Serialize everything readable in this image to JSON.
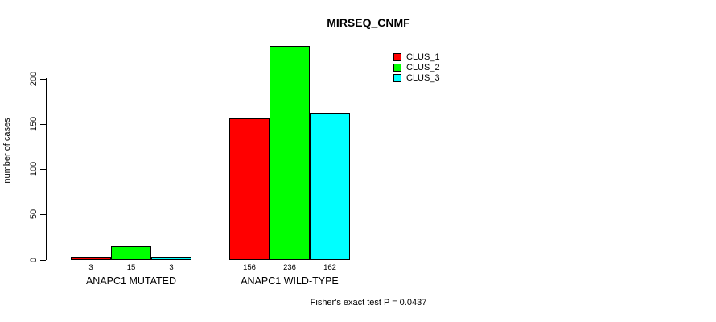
{
  "chart_data": {
    "type": "bar",
    "title": "MIRSEQ_CNMF",
    "ylabel": "number of cases",
    "xlabel": "",
    "categories": [
      "ANAPC1 MUTATED",
      "ANAPC1 WILD-TYPE"
    ],
    "series": [
      {
        "name": "CLUS_1",
        "color": "#FF0000",
        "values": [
          3,
          156
        ]
      },
      {
        "name": "CLUS_2",
        "color": "#00FF00",
        "values": [
          15,
          236
        ]
      },
      {
        "name": "CLUS_3",
        "color": "#00FFFF",
        "values": [
          3,
          162
        ]
      }
    ],
    "bar_value_labels": [
      [
        "3",
        "15",
        "3"
      ],
      [
        "156",
        "236",
        "162"
      ]
    ],
    "yticks": [
      0,
      50,
      100,
      150,
      200
    ],
    "ylim": [
      0,
      240
    ],
    "grid": false,
    "legend_position": "top-right",
    "footer": "Fisher's exact test P = 0.0437"
  }
}
